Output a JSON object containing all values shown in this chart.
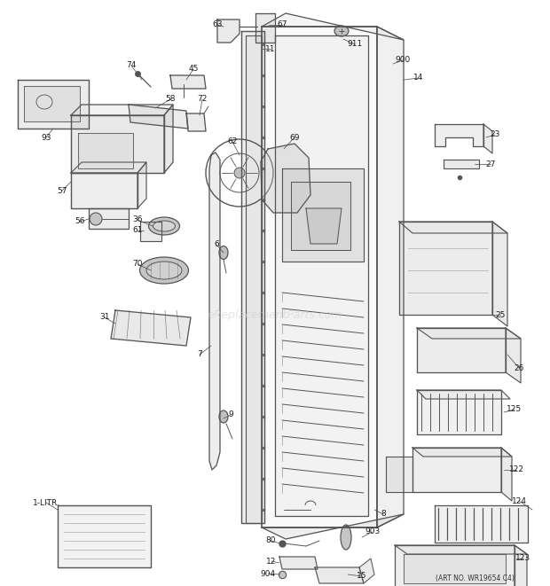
{
  "background_color": "#ffffff",
  "watermark": "eReplacementParts.com",
  "art_no": "(ART NO. WR19654 C4)",
  "figsize": [
    6.2,
    6.61
  ],
  "dpi": 100,
  "gray": "#555555",
  "darkgray": "#333333",
  "lightgray": "#aaaaaa",
  "label_fontsize": 6.5,
  "label_color": "#1a1a1a"
}
